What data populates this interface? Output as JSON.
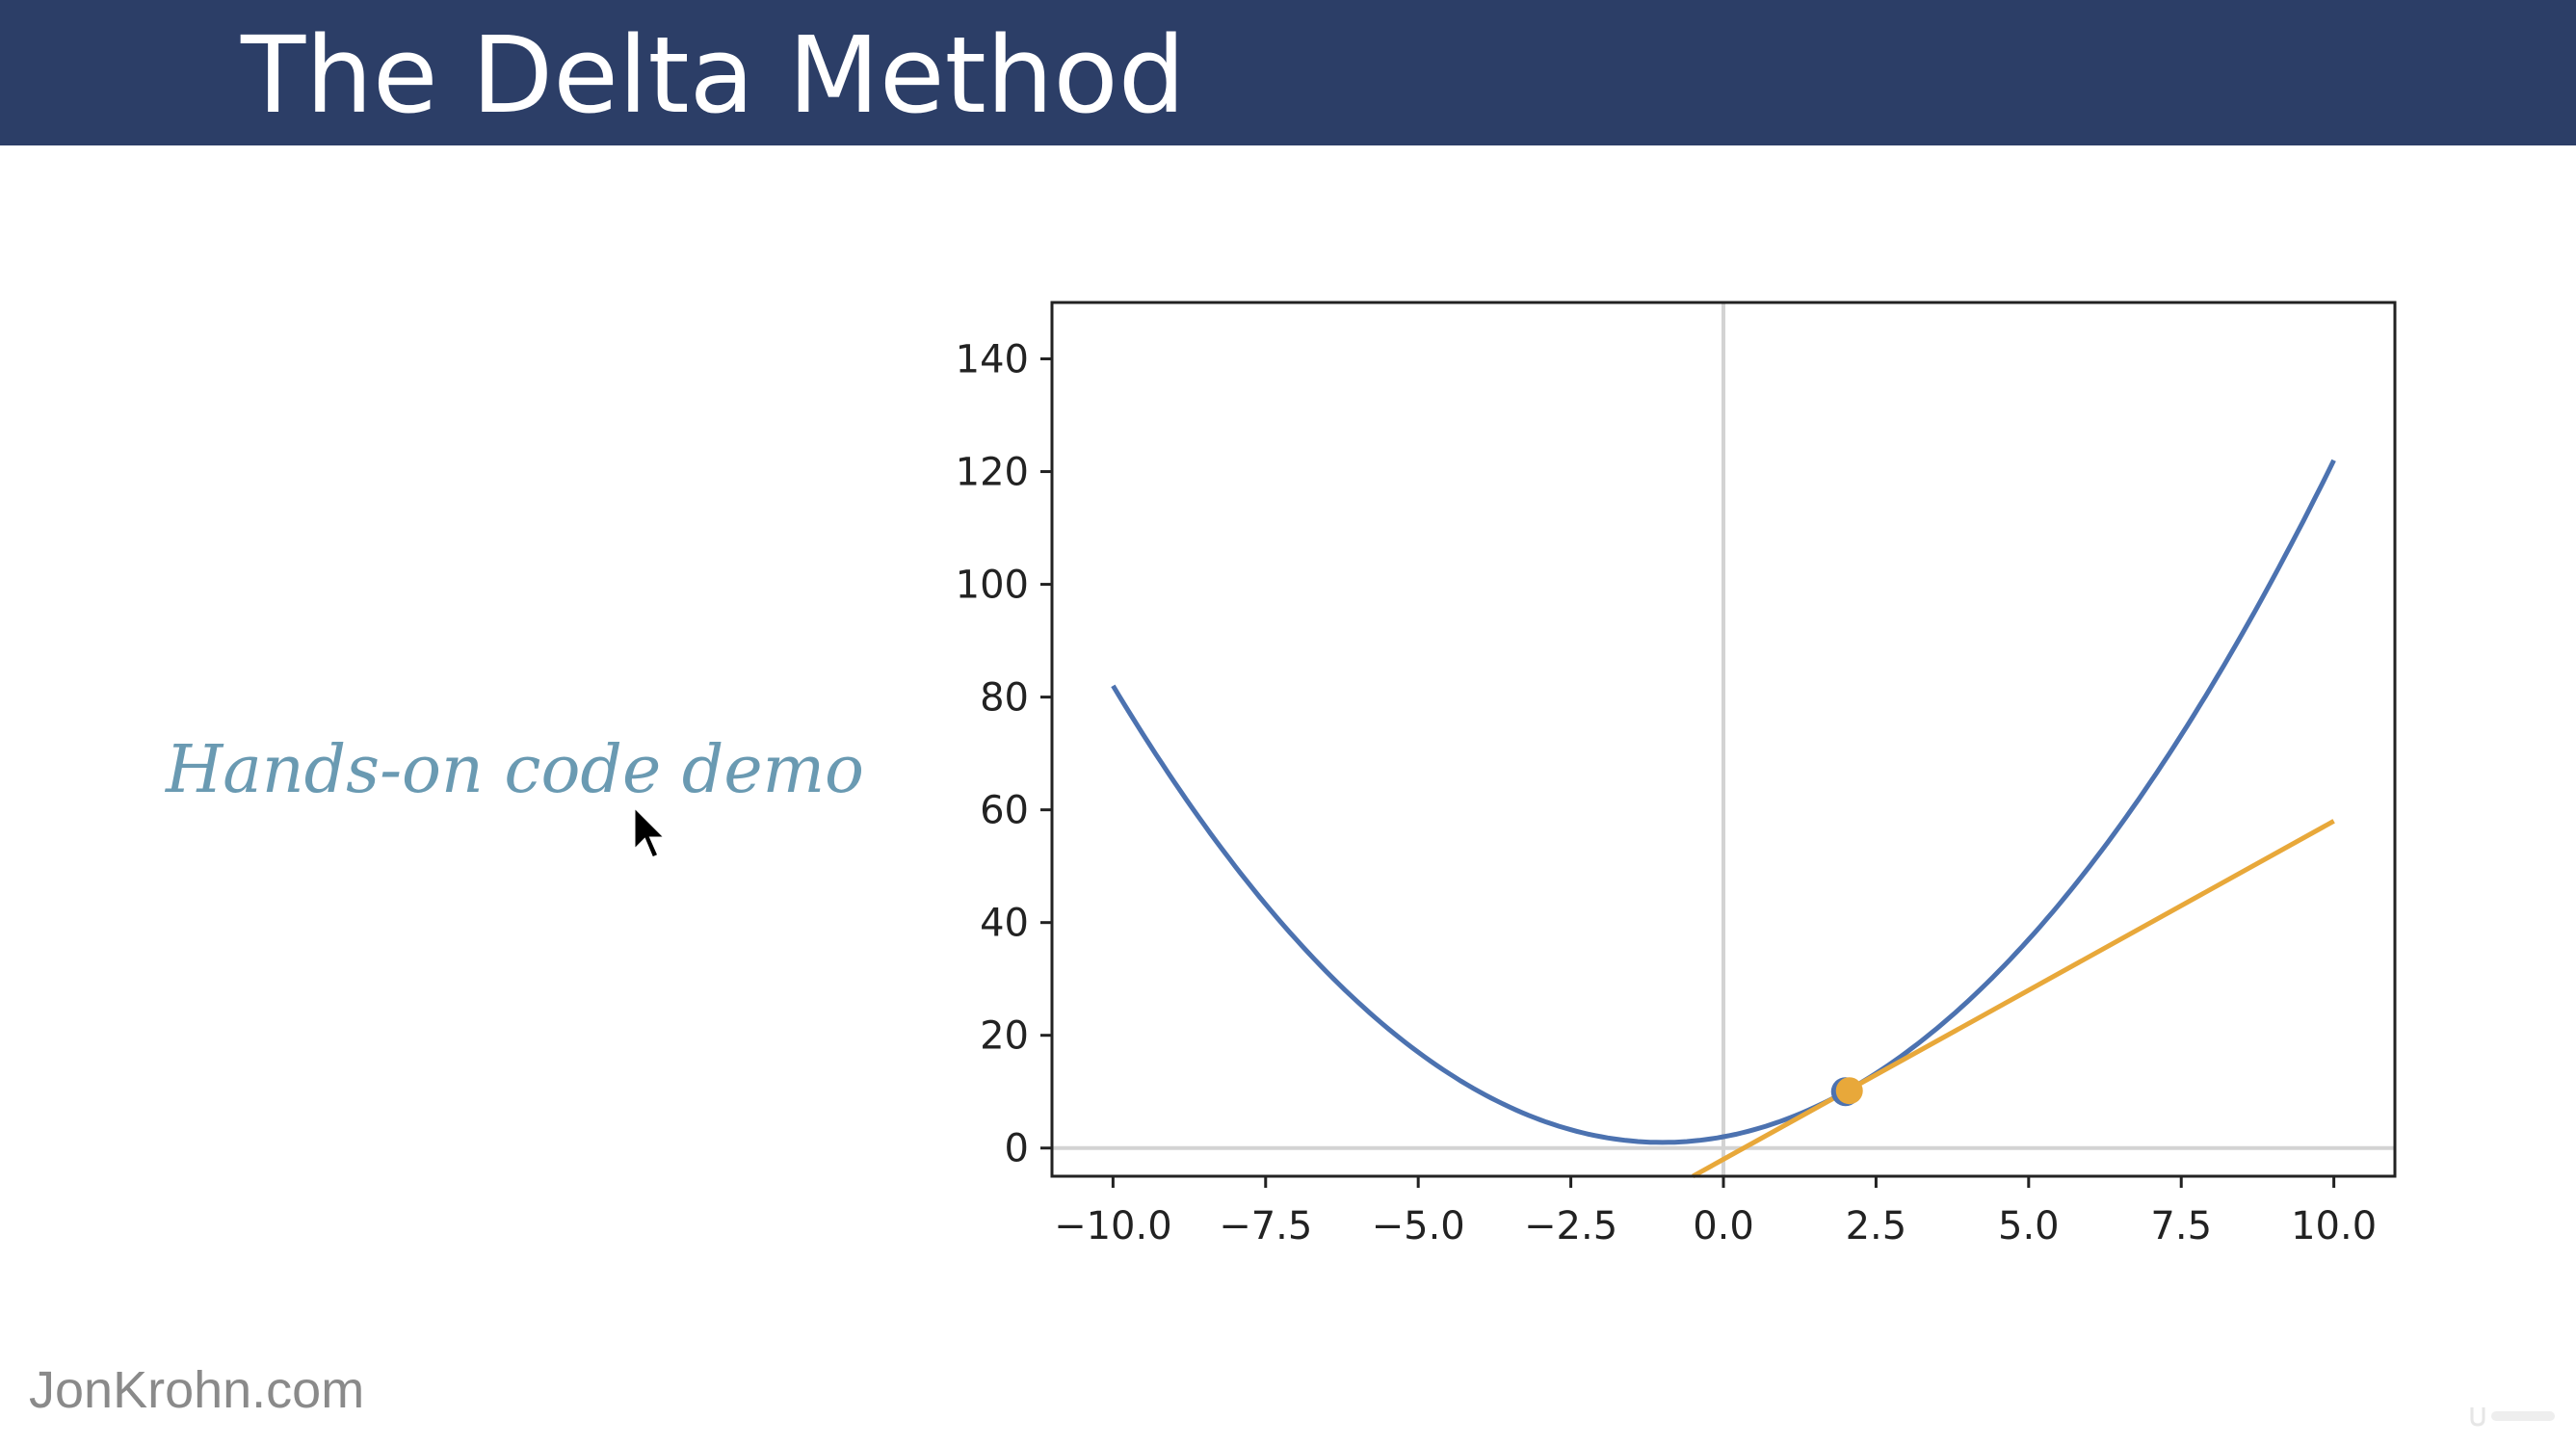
{
  "header": {
    "title": "The Delta Method"
  },
  "main": {
    "demo_label": "Hands-on code demo"
  },
  "footer": {
    "site": "JonKrohn.com"
  },
  "colors": {
    "header_bg": "#2c3e67",
    "curve": "#4c72b0",
    "tangent": "#e8a83a",
    "axis_lines": "#d3d3d3",
    "demo_text": "#6a9ab2"
  },
  "chart_data": {
    "type": "line",
    "title": "",
    "xlabel": "",
    "ylabel": "",
    "xlim": [
      -11,
      11
    ],
    "ylim": [
      -5,
      150
    ],
    "x_ticks": [
      -10.0,
      -7.5,
      -5.0,
      -2.5,
      0.0,
      2.5,
      5.0,
      7.5,
      10.0
    ],
    "x_tick_labels": [
      "−10.0",
      "−7.5",
      "−5.0",
      "−2.5",
      "0.0",
      "2.5",
      "5.0",
      "7.5",
      "10.0"
    ],
    "y_ticks": [
      0,
      20,
      40,
      60,
      80,
      100,
      120,
      140
    ],
    "y_tick_labels": [
      "0",
      "20",
      "40",
      "60",
      "80",
      "100",
      "120",
      "140"
    ],
    "grid": false,
    "legend": "none",
    "reference_lines": {
      "vertical_x": 0,
      "horizontal_y": 0
    },
    "series": [
      {
        "kind": "curve",
        "formula": "y = x^2 + 2x + 2",
        "x_range": [
          -10,
          10
        ]
      },
      {
        "kind": "tangent",
        "formula": "y = 6x - 2",
        "x_range": [
          -0.5,
          10
        ]
      }
    ],
    "points": [
      {
        "x": 2,
        "y": 10
      }
    ]
  }
}
